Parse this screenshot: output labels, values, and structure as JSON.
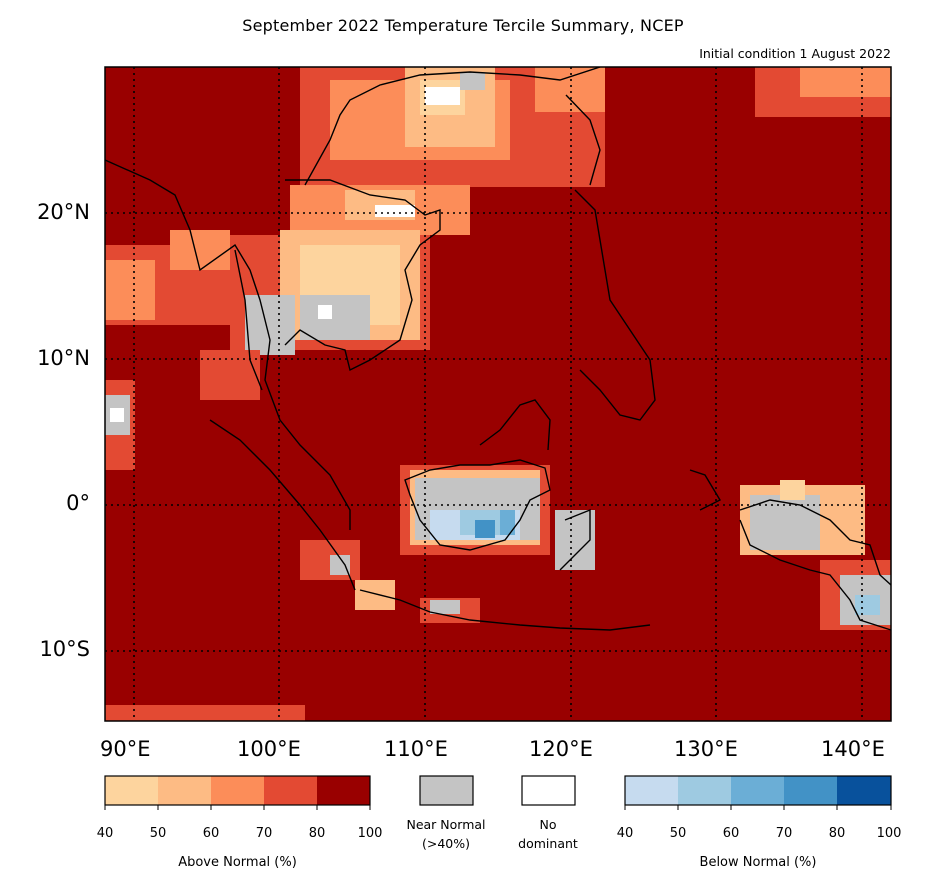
{
  "title": "September 2022 Temperature Tercile Summary, NCEP",
  "subtitle": "Initial condition 1 August 2022",
  "lat_labels": [
    "20°N",
    "10°N",
    "0°",
    "10°S"
  ],
  "lon_labels": [
    "90°E",
    "100°E",
    "110°E",
    "120°E",
    "130°E",
    "140°E"
  ],
  "legend": {
    "above": {
      "title": "Above Normal (%)",
      "ticks": [
        "40",
        "50",
        "60",
        "70",
        "80",
        "100"
      ],
      "colors": [
        "#fdd49e",
        "#fdbb84",
        "#fc8d59",
        "#e34a33",
        "#990000"
      ]
    },
    "near_normal": {
      "label_line1": "Near Normal",
      "label_line2": "(>40%)",
      "color": "#c4c4c4"
    },
    "no_dominant": {
      "label_line1": "No",
      "label_line2": "dominant",
      "color": "#ffffff"
    },
    "below": {
      "title": "Below Normal (%)",
      "ticks": [
        "40",
        "50",
        "60",
        "70",
        "80",
        "100"
      ],
      "colors": [
        "#c6dbef",
        "#9ecae1",
        "#6baed6",
        "#4292c6",
        "#08519c"
      ]
    }
  },
  "map": {
    "background_color": "#990000",
    "extent_lon": [
      86,
      142
    ],
    "extent_lat": [
      -15,
      30
    ]
  }
}
